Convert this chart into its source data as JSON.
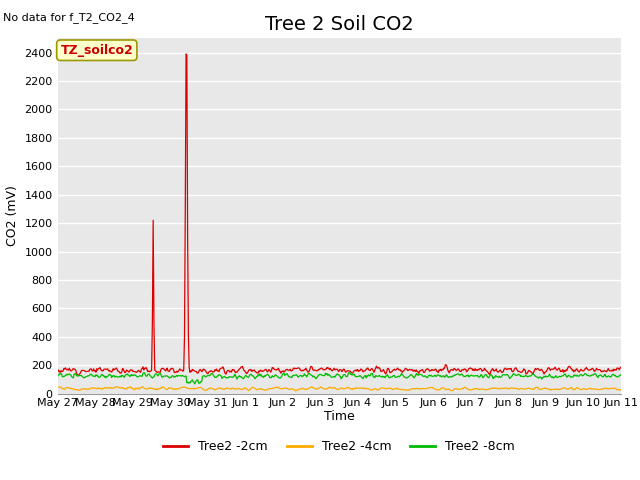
{
  "title": "Tree 2 Soil CO2",
  "top_left_text": "No data for f_T2_CO2_4",
  "ylabel": "CO2 (mV)",
  "xlabel": "Time",
  "annotation_label": "TZ_soilco2",
  "ylim": [
    0,
    2500
  ],
  "yticks": [
    0,
    200,
    400,
    600,
    800,
    1000,
    1200,
    1400,
    1600,
    1800,
    2000,
    2200,
    2400
  ],
  "fig_bg_color": "#ffffff",
  "plot_bg_color": "#e8e8e8",
  "line_colors": {
    "2cm": "#dd0000",
    "4cm": "#ffaa00",
    "8cm": "#00bb00"
  },
  "legend_labels": [
    "Tree2 -2cm",
    "Tree2 -4cm",
    "Tree2 -8cm"
  ],
  "x_tick_labels": [
    "May 27",
    "May 28",
    "May 29",
    "May 30",
    "May 31",
    "Jun 1",
    "Jun 2",
    "Jun 3",
    "Jun 4",
    "Jun 5",
    "Jun 6",
    "Jun 7",
    "Jun 8",
    "Jun 9",
    "Jun 10",
    "Jun 11"
  ],
  "title_fontsize": 14,
  "axis_fontsize": 9,
  "tick_fontsize": 8
}
